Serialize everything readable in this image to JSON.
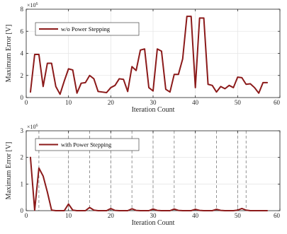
{
  "chart_data": [
    {
      "type": "line",
      "xlabel": "Iteration Count",
      "ylabel": "Maximum Error [V]",
      "y_exponent_label": "×10",
      "y_exponent": "6",
      "xlim": [
        0,
        60
      ],
      "ylim": [
        0,
        8
      ],
      "xticks": [
        0,
        10,
        20,
        30,
        40,
        50,
        60
      ],
      "yticks": [
        0,
        2,
        4,
        6,
        8
      ],
      "grid": true,
      "legend_position": "top-left",
      "series": [
        {
          "name": "w/o Power Stepping",
          "color": "#8b1a1a",
          "x": [
            1,
            2,
            3,
            4,
            5,
            6,
            7,
            8,
            9,
            10,
            11,
            12,
            13,
            14,
            15,
            16,
            17,
            18,
            19,
            20,
            21,
            22,
            23,
            24,
            25,
            26,
            27,
            28,
            29,
            30,
            31,
            32,
            33,
            34,
            35,
            36,
            37,
            38,
            39,
            40,
            41,
            42,
            43,
            44,
            45,
            46,
            47,
            48,
            49,
            50,
            51,
            52,
            53,
            54,
            55,
            56,
            57
          ],
          "y": [
            0.5,
            3.9,
            3.9,
            1.0,
            3.1,
            3.1,
            1.0,
            0.3,
            1.5,
            2.6,
            2.5,
            0.4,
            1.3,
            1.35,
            2.0,
            1.7,
            0.55,
            0.5,
            0.45,
            0.9,
            1.1,
            1.7,
            1.65,
            0.55,
            2.8,
            2.45,
            4.3,
            4.4,
            0.9,
            0.6,
            4.4,
            4.2,
            0.75,
            0.5,
            2.1,
            2.1,
            3.5,
            7.35,
            7.35,
            0.9,
            7.2,
            7.2,
            1.2,
            1.1,
            0.5,
            1.0,
            0.8,
            1.1,
            0.9,
            1.85,
            1.8,
            1.2,
            1.25,
            0.9,
            0.4,
            1.35,
            1.35
          ]
        }
      ]
    },
    {
      "type": "line",
      "xlabel": "Iteration Count",
      "ylabel": "Maximum Error [V]",
      "y_exponent_label": "×10",
      "y_exponent": "6",
      "xlim": [
        0,
        60
      ],
      "ylim": [
        0,
        3
      ],
      "xticks": [
        0,
        10,
        20,
        30,
        40,
        50,
        60
      ],
      "yticks": [
        0,
        1,
        2,
        3
      ],
      "grid": true,
      "legend_position": "top-left",
      "vlines": [
        3,
        10,
        15,
        20,
        25,
        30,
        35,
        40,
        45,
        50,
        52
      ],
      "series": [
        {
          "name": "with Power Stepping",
          "color": "#8b1a1a",
          "x": [
            1,
            2,
            3,
            4,
            5,
            6,
            7,
            8,
            9,
            10,
            11,
            12,
            13,
            14,
            15,
            16,
            17,
            18,
            19,
            20,
            21,
            22,
            23,
            24,
            25,
            26,
            27,
            28,
            29,
            30,
            31,
            32,
            33,
            34,
            35,
            36,
            37,
            38,
            39,
            40,
            41,
            42,
            43,
            44,
            45,
            46,
            47,
            48,
            49,
            50,
            51,
            52,
            53,
            54,
            55,
            56,
            57
          ],
          "y": [
            2.0,
            0.02,
            1.6,
            1.3,
            0.7,
            0.02,
            0.0,
            0.0,
            0.0,
            0.25,
            0.02,
            0.0,
            0.0,
            0.0,
            0.12,
            0.02,
            0.0,
            0.0,
            0.0,
            0.08,
            0.01,
            0.0,
            0.0,
            0.0,
            0.07,
            0.01,
            0.0,
            0.0,
            0.0,
            0.06,
            0.01,
            0.0,
            0.0,
            0.0,
            0.06,
            0.01,
            0.0,
            0.0,
            0.0,
            0.05,
            0.01,
            0.0,
            0.0,
            0.0,
            0.05,
            0.01,
            0.0,
            0.0,
            0.0,
            0.02,
            0.08,
            0.02,
            0.0,
            0.0,
            0.0,
            0.0,
            0.0
          ]
        }
      ]
    }
  ]
}
